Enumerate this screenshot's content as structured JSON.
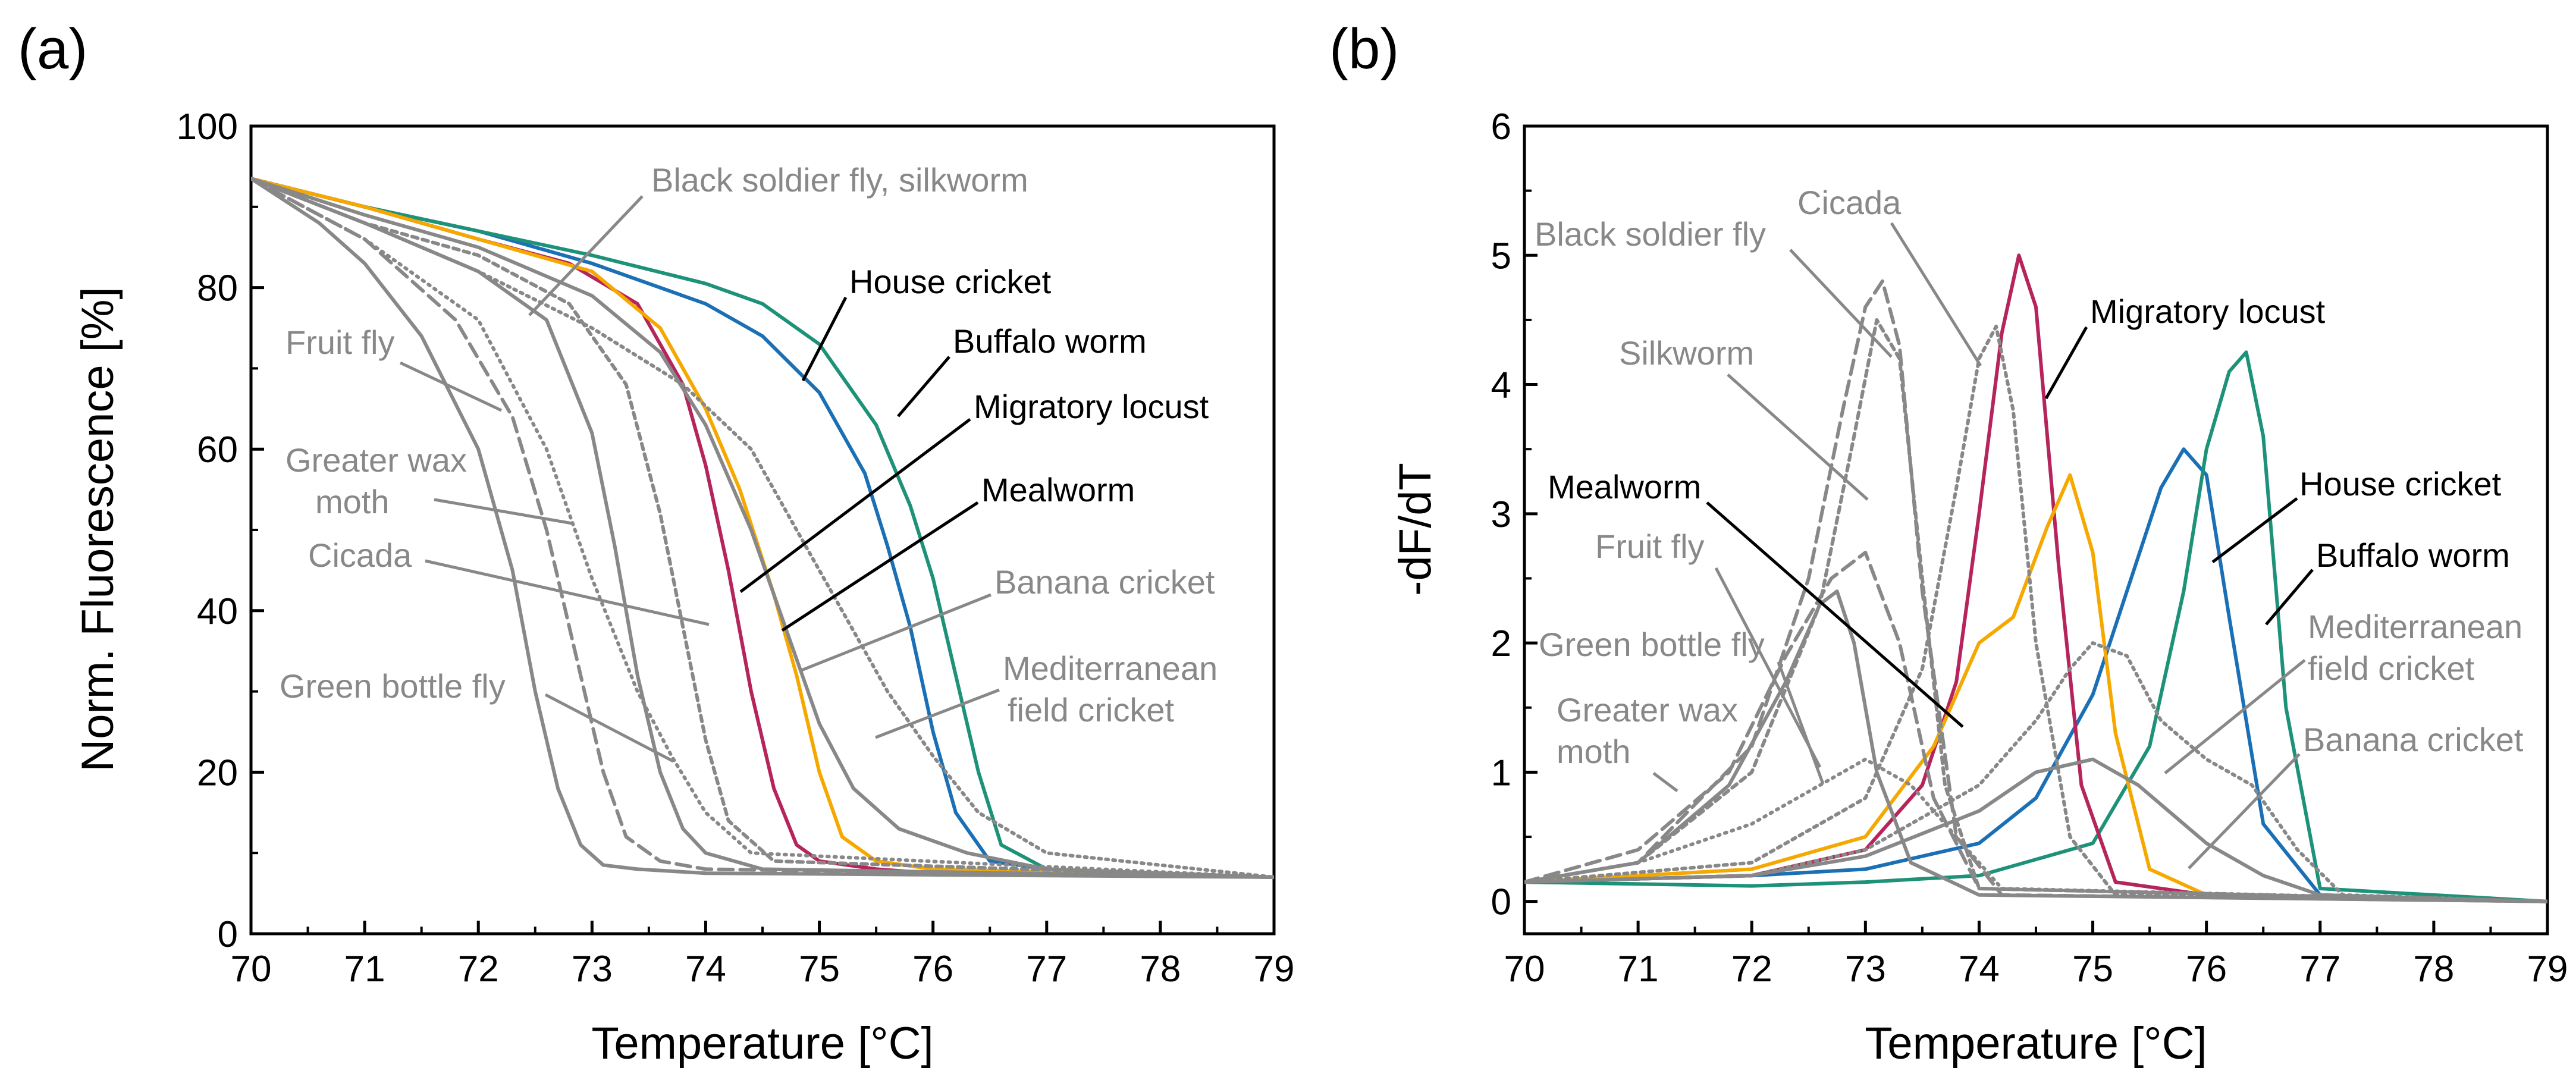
{
  "chart_data": [
    {
      "panel": "(a)",
      "type": "line",
      "xlabel": "Temperature [°C]",
      "ylabel": "Norm. Fluorescence [%]",
      "xlim": [
        70,
        79
      ],
      "ylim": [
        0,
        100
      ],
      "xticks": [
        "70",
        "71",
        "72",
        "73",
        "74",
        "75",
        "76",
        "77",
        "78",
        "79"
      ],
      "yticks": [
        "0",
        "20",
        "40",
        "60",
        "80",
        "100"
      ],
      "grid": false,
      "series": [
        {
          "name": "House cricket",
          "color": "#1a6fb5",
          "dash": "",
          "x": [
            70,
            71,
            72,
            73,
            74,
            74.5,
            75,
            75.4,
            75.6,
            75.8,
            76,
            76.2,
            76.5,
            77,
            78,
            79
          ],
          "y": [
            93.5,
            90,
            87,
            83,
            78,
            74,
            67,
            57,
            48,
            38,
            25,
            15,
            9,
            8,
            7.5,
            7
          ]
        },
        {
          "name": "Buffalo worm",
          "color": "#1e9279",
          "dash": "",
          "x": [
            70,
            71,
            72,
            73,
            74,
            74.5,
            75,
            75.5,
            75.8,
            76,
            76.2,
            76.4,
            76.6,
            77,
            78,
            79
          ],
          "y": [
            93.5,
            90,
            87,
            84,
            80.5,
            78,
            73,
            63,
            53,
            44,
            32,
            20,
            11,
            8,
            7.5,
            7
          ]
        },
        {
          "name": "Migratory locust",
          "color": "#b5245a",
          "dash": "",
          "x": [
            70,
            71,
            72,
            72.8,
            73.4,
            73.8,
            74,
            74.2,
            74.4,
            74.6,
            74.8,
            75,
            75.5,
            76,
            79
          ],
          "y": [
            93.5,
            90,
            86,
            83,
            78,
            68,
            58,
            45,
            30,
            18,
            11,
            9,
            8,
            7.5,
            7
          ]
        },
        {
          "name": "Mealworm",
          "color": "#f5a800",
          "dash": "",
          "x": [
            70,
            71,
            72,
            73,
            73.6,
            74,
            74.3,
            74.6,
            74.8,
            75,
            75.2,
            75.5,
            76,
            79
          ],
          "y": [
            93.5,
            90,
            86,
            82,
            75,
            65,
            55,
            42,
            32,
            20,
            12,
            9,
            8,
            7
          ]
        },
        {
          "name": "Black soldier fly, silkworm",
          "color": "#888888",
          "dash": "",
          "x": [
            70,
            71,
            72,
            72.6,
            73,
            73.2,
            73.4,
            73.6,
            73.8,
            74,
            74.5,
            79
          ],
          "y": [
            93.5,
            88,
            82,
            76,
            62,
            48,
            32,
            20,
            13,
            10,
            8,
            7
          ]
        },
        {
          "name": "Fruit fly",
          "color": "#888888",
          "dash": "",
          "x": [
            70,
            70.6,
            71,
            71.5,
            72,
            72.3,
            72.5,
            72.7,
            72.9,
            73.1,
            73.4,
            74,
            79
          ],
          "y": [
            93.5,
            88,
            83,
            74,
            60,
            45,
            30,
            18,
            11,
            8.5,
            8,
            7.5,
            7
          ]
        },
        {
          "name": "Greater wax moth",
          "color": "#888888",
          "dash": "24 12",
          "x": [
            70,
            71,
            71.8,
            72.3,
            72.6,
            72.9,
            73.1,
            73.3,
            73.6,
            74,
            79
          ],
          "y": [
            93.5,
            86,
            76,
            64,
            50,
            32,
            20,
            12,
            9,
            8,
            7
          ]
        },
        {
          "name": "Cicada",
          "color": "#888888",
          "dash": "10 8",
          "x": [
            70,
            71,
            72,
            72.8,
            73.3,
            73.6,
            73.8,
            74,
            74.2,
            74.6,
            79
          ],
          "y": [
            93.5,
            88,
            84,
            78,
            68,
            52,
            38,
            24,
            14,
            9,
            7
          ]
        },
        {
          "name": "Green bottle fly",
          "color": "#888888",
          "dash": "3 9",
          "x": [
            70,
            71,
            72,
            72.6,
            73,
            73.4,
            73.7,
            74,
            74.4,
            79
          ],
          "y": [
            93.5,
            86,
            76,
            60,
            44,
            30,
            22,
            15,
            10,
            7
          ]
        },
        {
          "name": "Banana cricket",
          "color": "#888888",
          "dash": "",
          "x": [
            70,
            71,
            72,
            73,
            73.6,
            74,
            74.4,
            74.7,
            75,
            75.3,
            75.7,
            76.3,
            77,
            79
          ],
          "y": [
            93.5,
            89,
            85,
            79,
            72,
            63,
            50,
            38,
            26,
            18,
            13,
            10,
            8,
            7
          ]
        },
        {
          "name": "Mediterranean field cricket",
          "color": "#888888",
          "dash": "4 8",
          "x": [
            70,
            71,
            72,
            73,
            73.8,
            74.4,
            74.8,
            75.2,
            75.6,
            76,
            76.4,
            77,
            79
          ],
          "y": [
            93.5,
            88,
            82,
            75,
            68,
            60,
            50,
            40,
            30,
            22,
            15,
            10,
            7
          ]
        }
      ],
      "annotations": [
        {
          "text": "Black soldier fly, silkworm",
          "color": "#888888"
        },
        {
          "text": "House cricket",
          "color": "#000000"
        },
        {
          "text": "Buffalo worm",
          "color": "#000000"
        },
        {
          "text": "Migratory locust",
          "color": "#000000"
        },
        {
          "text": "Mealworm",
          "color": "#000000"
        },
        {
          "text": "Fruit fly",
          "color": "#888888"
        },
        {
          "text": "Greater wax",
          "color": "#888888"
        },
        {
          "text": "moth",
          "color": "#888888"
        },
        {
          "text": "Cicada",
          "color": "#888888"
        },
        {
          "text": "Banana cricket",
          "color": "#888888"
        },
        {
          "text": "Mediterranean",
          "color": "#888888"
        },
        {
          "text": "field cricket",
          "color": "#888888"
        },
        {
          "text": "Green bottle fly",
          "color": "#888888"
        }
      ]
    },
    {
      "panel": "(b)",
      "type": "line",
      "xlabel": "Temperature [°C]",
      "ylabel": "-dF/dT",
      "xlim": [
        70,
        79
      ],
      "ylim": [
        -0.25,
        6
      ],
      "xticks": [
        "70",
        "71",
        "72",
        "73",
        "74",
        "75",
        "76",
        "77",
        "78",
        "79"
      ],
      "yticks": [
        "0",
        "1",
        "2",
        "3",
        "4",
        "5",
        "6"
      ],
      "grid": false,
      "series": [
        {
          "name": "House cricket",
          "color": "#1a6fb5",
          "dash": "",
          "x": [
            70,
            72,
            73,
            74,
            74.5,
            75,
            75.3,
            75.6,
            75.8,
            76,
            76.2,
            76.5,
            77,
            79
          ],
          "y": [
            0.15,
            0.2,
            0.25,
            0.45,
            0.8,
            1.6,
            2.4,
            3.2,
            3.5,
            3.3,
            2.2,
            0.6,
            0.05,
            0
          ]
        },
        {
          "name": "Buffalo worm",
          "color": "#1e9279",
          "dash": "",
          "x": [
            70,
            72,
            73,
            74,
            75,
            75.5,
            75.8,
            76,
            76.2,
            76.35,
            76.5,
            76.7,
            77,
            79
          ],
          "y": [
            0.15,
            0.12,
            0.15,
            0.2,
            0.45,
            1.2,
            2.4,
            3.5,
            4.1,
            4.25,
            3.6,
            1.5,
            0.1,
            0
          ]
        },
        {
          "name": "Migratory locust",
          "color": "#b5245a",
          "dash": "",
          "x": [
            70,
            72,
            73,
            73.5,
            73.8,
            74,
            74.2,
            74.35,
            74.5,
            74.7,
            74.9,
            75.2,
            76,
            79
          ],
          "y": [
            0.15,
            0.2,
            0.4,
            0.9,
            1.7,
            3,
            4.4,
            5,
            4.6,
            2.6,
            0.9,
            0.15,
            0.05,
            0
          ]
        },
        {
          "name": "Mealworm",
          "color": "#f5a800",
          "dash": "",
          "x": [
            70,
            72,
            73,
            73.6,
            74,
            74.3,
            74.6,
            74.8,
            75,
            75.2,
            75.5,
            76,
            79
          ],
          "y": [
            0.15,
            0.25,
            0.5,
            1.2,
            2,
            2.2,
            2.9,
            3.3,
            2.7,
            1.3,
            0.25,
            0.05,
            0
          ]
        },
        {
          "name": "Black soldier fly",
          "color": "#888888",
          "dash": "24 12",
          "x": [
            70,
            71,
            72,
            72.5,
            72.8,
            73,
            73.15,
            73.3,
            73.5,
            73.8,
            74.2,
            79
          ],
          "y": [
            0.15,
            0.3,
            1.2,
            2.5,
            3.8,
            4.6,
            4.8,
            4.3,
            2.4,
            0.5,
            0.05,
            0
          ]
        },
        {
          "name": "Silkworm",
          "color": "#888888",
          "dash": "10 8",
          "x": [
            70,
            71,
            72,
            72.6,
            72.9,
            73.1,
            73.3,
            73.5,
            73.7,
            74,
            79
          ],
          "y": [
            0.15,
            0.3,
            1,
            2.3,
            3.6,
            4.5,
            4.2,
            2.5,
            0.9,
            0.1,
            0
          ]
        },
        {
          "name": "Cicada",
          "color": "#888888",
          "dash": "6 8",
          "x": [
            70,
            72,
            73,
            73.5,
            73.8,
            74,
            74.15,
            74.3,
            74.5,
            74.8,
            75.2,
            79
          ],
          "y": [
            0.15,
            0.3,
            0.8,
            1.8,
            3.2,
            4.2,
            4.45,
            3.8,
            2,
            0.5,
            0.05,
            0
          ]
        },
        {
          "name": "Fruit fly",
          "color": "#888888",
          "dash": "",
          "x": [
            70,
            71,
            71.8,
            72.3,
            72.6,
            72.75,
            72.9,
            73.1,
            73.4,
            74,
            79
          ],
          "y": [
            0.15,
            0.3,
            0.9,
            1.7,
            2.3,
            2.4,
            2,
            1,
            0.3,
            0.05,
            0
          ]
        },
        {
          "name": "Green bottle fly",
          "color": "#888888",
          "dash": "3 9",
          "x": [
            70,
            71,
            72,
            72.6,
            73,
            73.4,
            73.8,
            74.2,
            79
          ],
          "y": [
            0.15,
            0.3,
            0.6,
            0.9,
            1.1,
            0.9,
            0.5,
            0.1,
            0
          ]
        },
        {
          "name": "Greater wax moth",
          "color": "#888888",
          "dash": "24 12",
          "x": [
            70,
            71,
            71.8,
            72.3,
            72.7,
            73,
            73.3,
            73.6,
            74,
            79
          ],
          "y": [
            0.15,
            0.4,
            1,
            1.9,
            2.5,
            2.7,
            2,
            0.8,
            0.1,
            0
          ]
        },
        {
          "name": "Mediterranean field cricket",
          "color": "#888888",
          "dash": "4 8",
          "x": [
            70,
            72,
            73,
            74,
            74.5,
            74.8,
            75,
            75.3,
            75.6,
            76,
            76.4,
            76.8,
            77.2,
            79
          ],
          "y": [
            0.15,
            0.2,
            0.4,
            0.9,
            1.4,
            1.8,
            2,
            1.9,
            1.4,
            1.1,
            0.9,
            0.4,
            0.05,
            0
          ]
        },
        {
          "name": "Banana cricket",
          "color": "#888888",
          "dash": "",
          "x": [
            70,
            72,
            73,
            74,
            74.5,
            75,
            75.4,
            75.8,
            76,
            76.2,
            76.5,
            77,
            79
          ],
          "y": [
            0.15,
            0.2,
            0.35,
            0.7,
            1,
            1.1,
            0.9,
            0.6,
            0.45,
            0.35,
            0.2,
            0.05,
            0
          ]
        }
      ],
      "annotations": [
        {
          "text": "Black soldier fly",
          "color": "#888888"
        },
        {
          "text": "Cicada",
          "color": "#888888"
        },
        {
          "text": "Silkworm",
          "color": "#888888"
        },
        {
          "text": "Migratory locust",
          "color": "#000000"
        },
        {
          "text": "Mealworm",
          "color": "#000000"
        },
        {
          "text": "Fruit fly",
          "color": "#888888"
        },
        {
          "text": "House cricket",
          "color": "#000000"
        },
        {
          "text": "Buffalo worm",
          "color": "#000000"
        },
        {
          "text": "Green bottle fly",
          "color": "#888888"
        },
        {
          "text": "Mediterranean",
          "color": "#888888"
        },
        {
          "text": "field cricket",
          "color": "#888888"
        },
        {
          "text": "Greater wax",
          "color": "#888888"
        },
        {
          "text": "moth",
          "color": "#888888"
        },
        {
          "text": "Banana cricket",
          "color": "#888888"
        }
      ]
    }
  ]
}
